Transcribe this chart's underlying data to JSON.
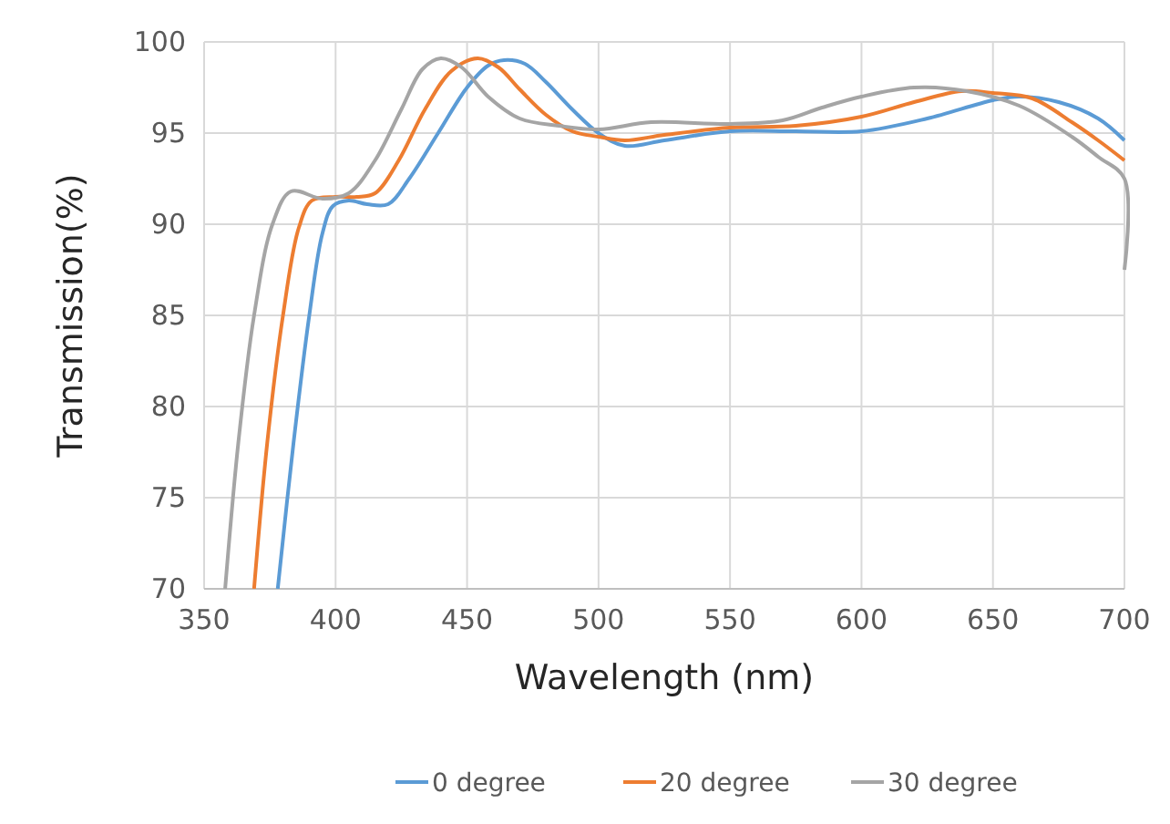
{
  "chart_data": {
    "type": "line",
    "xlabel": "Wavelength (nm)",
    "ylabel": "Transmission(%)",
    "xlim": [
      350,
      700
    ],
    "xticks": [
      350,
      400,
      450,
      500,
      550,
      600,
      650,
      700
    ],
    "ylim": [
      70,
      100
    ],
    "yticks": [
      70,
      75,
      80,
      85,
      90,
      95,
      100
    ],
    "grid": true,
    "legend": "bottom",
    "marker": "none",
    "line_style": "solid",
    "series": [
      {
        "name": "0 degree",
        "color": "#5b9bd5",
        "x": [
          378,
          384,
          390,
          395,
          399,
          405,
          412,
          420,
          428,
          439,
          450,
          458,
          464,
          472,
          480,
          490,
          500,
          510,
          525,
          550,
          575,
          600,
          625,
          650,
          660,
          675,
          690,
          700
        ],
        "values": [
          70,
          78,
          85,
          89.5,
          91,
          91.3,
          91.1,
          91.1,
          92.5,
          95,
          97.5,
          98.7,
          99,
          98.8,
          97.8,
          96.3,
          95,
          94.3,
          94.6,
          95.1,
          95.1,
          95.1,
          95.8,
          96.8,
          97,
          96.7,
          95.8,
          94.6
        ]
      },
      {
        "name": "20 degree",
        "color": "#ed7d31",
        "x": [
          369,
          374,
          380,
          386,
          391,
          400,
          408,
          415,
          424,
          434,
          444,
          454,
          462,
          470,
          480,
          490,
          500,
          510,
          525,
          550,
          575,
          600,
          620,
          638,
          650,
          665,
          680,
          690,
          700
        ],
        "values": [
          70,
          78,
          85,
          89.8,
          91.3,
          91.5,
          91.5,
          91.7,
          93.5,
          96.3,
          98.4,
          99.1,
          98.6,
          97.4,
          96,
          95.1,
          94.8,
          94.6,
          94.9,
          95.3,
          95.4,
          95.9,
          96.7,
          97.3,
          97.2,
          96.9,
          95.6,
          94.6,
          93.5
        ]
      },
      {
        "name": "30 degree",
        "color": "#a5a5a5",
        "x": [
          358,
          363,
          369,
          376,
          383,
          395,
          405,
          415,
          425,
          433,
          440,
          448,
          458,
          470,
          485,
          500,
          520,
          550,
          570,
          585,
          600,
          620,
          640,
          660,
          680,
          690,
          700,
          700
        ],
        "values": [
          70,
          78,
          85,
          90,
          91.8,
          91.4,
          91.7,
          93.5,
          96.3,
          98.5,
          99.1,
          98.6,
          97,
          95.8,
          95.4,
          95.2,
          95.6,
          95.5,
          95.7,
          96.4,
          97,
          97.5,
          97.3,
          96.5,
          94.8,
          93.7,
          92.5,
          87.5
        ]
      }
    ]
  }
}
